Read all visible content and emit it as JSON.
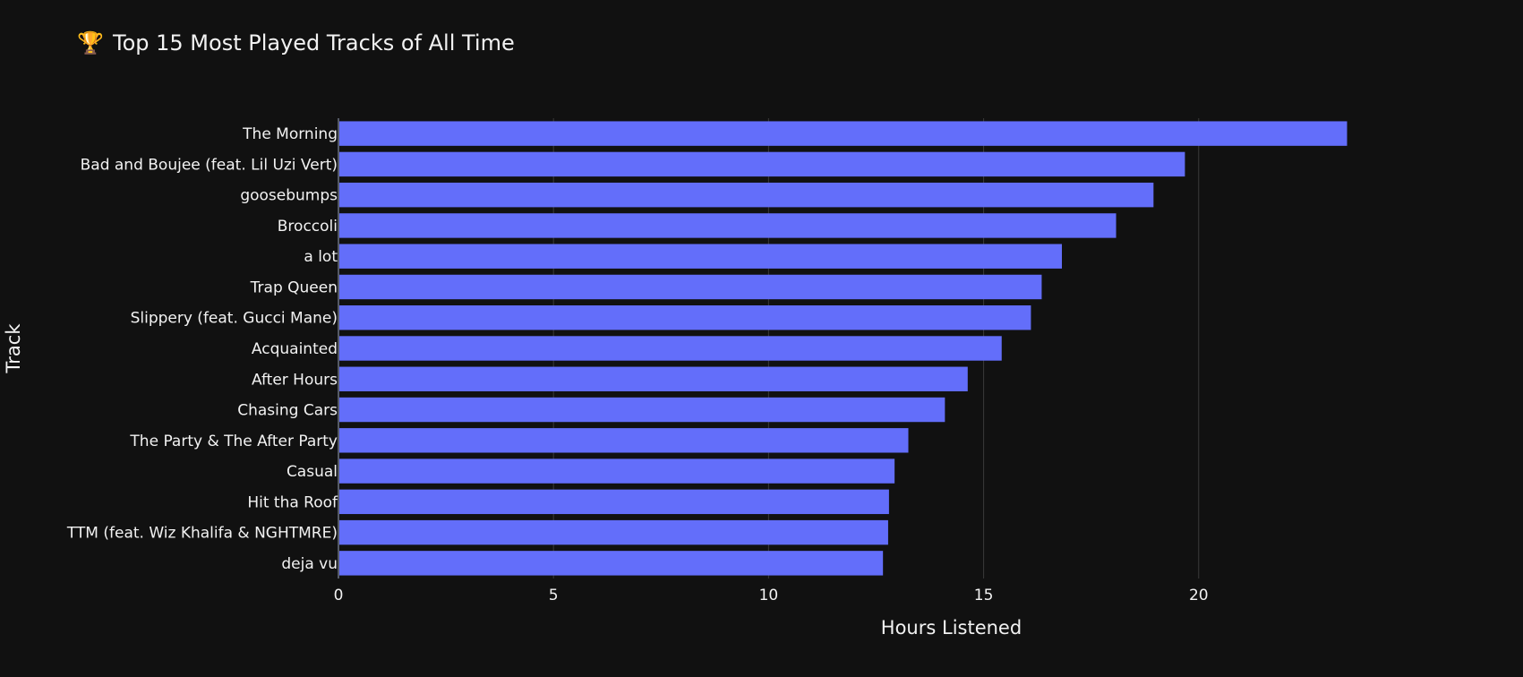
{
  "chart_data": {
    "type": "bar",
    "orientation": "horizontal",
    "title_icon": "🏆",
    "title": "Top 15 Most Played Tracks of All Time",
    "xlabel": "Hours Listened",
    "ylabel": "Track",
    "xlim": [
      0,
      26
    ],
    "xticks": [
      0,
      5,
      10,
      15,
      20
    ],
    "grid": true,
    "legend": "none",
    "bar_color": "#636efa",
    "background_color": "#111111",
    "categories": [
      "The Morning",
      "Bad and Boujee (feat. Lil Uzi Vert)",
      "goosebumps",
      "Broccoli",
      "a lot",
      "Trap Queen",
      "Slippery (feat. Gucci Mane)",
      "Acquainted",
      "After Hours",
      "Chasing Cars",
      "The Party & The After Party",
      "Casual",
      "Hit tha Roof",
      "TTM (feat. Wiz Khalifa & NGHTMRE)",
      "deja vu"
    ],
    "values": [
      23.45,
      19.68,
      18.95,
      18.08,
      16.82,
      16.35,
      16.1,
      15.42,
      14.63,
      14.1,
      13.25,
      12.93,
      12.8,
      12.78,
      12.66
    ]
  }
}
